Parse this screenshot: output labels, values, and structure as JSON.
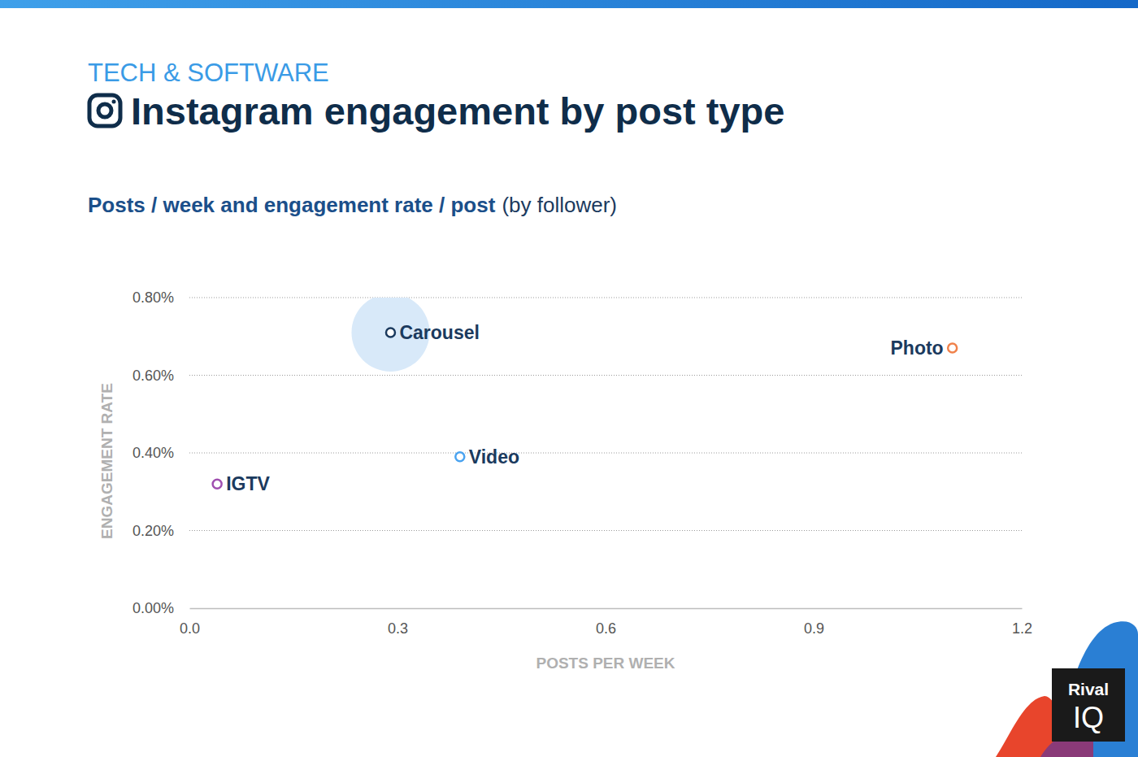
{
  "chart_data": {
    "type": "scatter",
    "kicker": "TECH & SOFTWARE",
    "title": "Instagram engagement by post type",
    "subtitle": "Posts / week and engagement rate / post",
    "subtitle_note": "(by follower)",
    "x_label": "POSTS PER WEEK",
    "y_label": "ENGAGEMENT RATE",
    "xlim": [
      0,
      1.2
    ],
    "ylim": [
      0,
      0.8
    ],
    "xticks": [
      {
        "value": 0,
        "label": "0.0"
      },
      0.3,
      0.6,
      0.9,
      1.2
    ],
    "yticks": [
      {
        "value": 0,
        "label": "0.00%"
      },
      {
        "value": 0.2,
        "label": "0.20%"
      },
      {
        "value": 0.4,
        "label": "0.40%"
      },
      {
        "value": 0.6,
        "label": "0.60%"
      },
      {
        "value": 0.8,
        "label": "0.80%"
      }
    ],
    "grid": true,
    "series": [
      {
        "name": "Carousel",
        "color": "#1b3a5e",
        "x": [
          0.29
        ],
        "values": [
          0.71
        ]
      },
      {
        "name": "Photo",
        "color": "#f0824b",
        "x": [
          1.1
        ],
        "values": [
          0.67
        ]
      },
      {
        "name": "Video",
        "color": "#4aa3f0",
        "x": [
          0.39
        ],
        "values": [
          0.39
        ]
      },
      {
        "name": "IGTV",
        "color": "#a04fb0",
        "x": [
          0.04
        ],
        "values": [
          0.32
        ]
      }
    ],
    "brand": [
      "Rival",
      "IQ"
    ]
  }
}
